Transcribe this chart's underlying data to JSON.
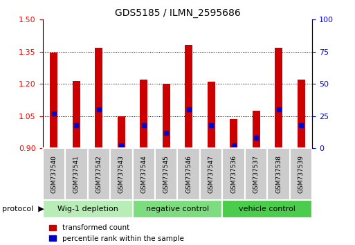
{
  "title": "GDS5185 / ILMN_2595686",
  "samples": [
    "GSM737540",
    "GSM737541",
    "GSM737542",
    "GSM737543",
    "GSM737544",
    "GSM737545",
    "GSM737546",
    "GSM737547",
    "GSM737536",
    "GSM737537",
    "GSM737538",
    "GSM737539"
  ],
  "transformed_count": [
    1.345,
    1.215,
    1.37,
    1.05,
    1.22,
    1.2,
    1.38,
    1.21,
    1.035,
    1.075,
    1.37,
    1.22
  ],
  "percentile_rank": [
    27,
    18,
    30,
    2,
    18,
    12,
    30,
    18,
    2,
    8,
    30,
    18
  ],
  "groups": [
    {
      "label": "Wig-1 depletion",
      "start": 0,
      "end": 3,
      "color": "#b8edb8"
    },
    {
      "label": "negative control",
      "start": 4,
      "end": 7,
      "color": "#7ddc7d"
    },
    {
      "label": "vehicle control",
      "start": 8,
      "end": 11,
      "color": "#4ccc4c"
    }
  ],
  "ylim_left": [
    0.9,
    1.5
  ],
  "ylim_right": [
    0,
    100
  ],
  "yticks_left": [
    0.9,
    1.05,
    1.2,
    1.35,
    1.5
  ],
  "yticks_right": [
    0,
    25,
    50,
    75,
    100
  ],
  "bar_color": "#cc0000",
  "dot_color": "#0000cc",
  "bar_width": 0.35,
  "background_color": "#ffffff",
  "gridline_color": "#000000",
  "legend_items": [
    "transformed count",
    "percentile rank within the sample"
  ],
  "sample_box_color": "#cccccc",
  "protocol_label": "protocol"
}
